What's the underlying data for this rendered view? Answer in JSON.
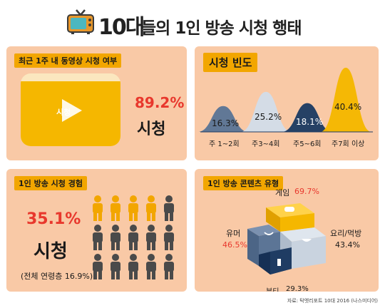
{
  "header": {
    "title_big": "10대",
    "title_rest": "들의 1인 방송 시청 행태"
  },
  "panel1": {
    "tag": "최근 1주 내 동영상 시청 여부",
    "play_label": "시청",
    "pct": "89.2%",
    "label": "시청",
    "fill_fraction": 0.892
  },
  "panel2": {
    "tag": "시청 빈도",
    "distribution": [
      {
        "pct": "16.3%",
        "label": "주 1~2회",
        "value": 16.3,
        "color": "#5c7596"
      },
      {
        "pct": "25.2%",
        "label": "주3~4회",
        "value": 25.2,
        "color": "#d3dce8"
      },
      {
        "pct": "18.1%",
        "label": "주5~6회",
        "value": 18.1,
        "color": "#1f3c63"
      },
      {
        "pct": "40.4%",
        "label": "주7회 이상",
        "value": 40.4,
        "color": "#f5b700"
      }
    ]
  },
  "panel3": {
    "tag": "1인 방송 시청 경험",
    "pct": "35.1%",
    "label": "시청",
    "note": "(전체 연령층 16.9%)",
    "people_highlighted": 4,
    "people_total": 15,
    "colors": {
      "highlight": "#f2a600",
      "other": "#4a4a4a"
    }
  },
  "panel4": {
    "tag": "1인 방송 콘텐츠 유형",
    "segments": {
      "game": {
        "name": "게임",
        "pct": "69.7%",
        "value": 69.7,
        "color": "#f5b700"
      },
      "humor": {
        "name": "유머",
        "pct": "46.5%",
        "value": 46.5,
        "color": "#5c7596"
      },
      "cooking": {
        "name": "요리/먹방",
        "pct": "43.4%",
        "value": 43.4,
        "color": "#c9d3df"
      },
      "beauty": {
        "name": "뷰티",
        "pct": "29.3%",
        "value": 29.3,
        "color": "#1f3c63"
      }
    }
  },
  "credit": "자료: 탁엣리포트 10대 2016 (나스미디어)"
}
